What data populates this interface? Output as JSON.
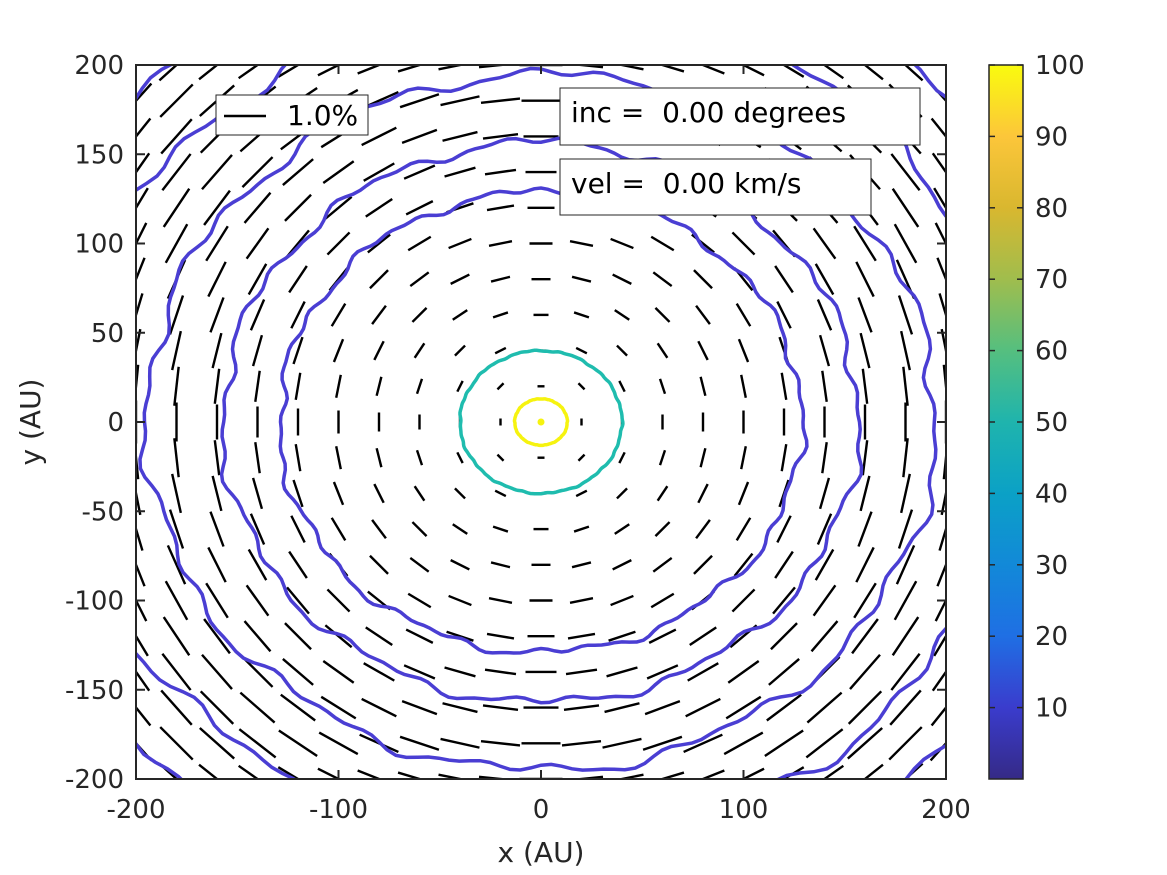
{
  "chart_data": {
    "type": "contour",
    "title": "",
    "xlabel": "x (AU)",
    "ylabel": "y (AU)",
    "xlim": [
      -200,
      200
    ],
    "ylim": [
      -200,
      200
    ],
    "xticks": [
      -200,
      -100,
      0,
      100,
      200
    ],
    "yticks": [
      -200,
      -150,
      -100,
      -50,
      0,
      50,
      100,
      150,
      200
    ],
    "xtick_labels": [
      "-200",
      "-100",
      "0",
      "100",
      "200"
    ],
    "ytick_labels": [
      "-200",
      "-150",
      "-100",
      "-50",
      "0",
      "50",
      "100",
      "150",
      "200"
    ],
    "colorbar": {
      "range": [
        0,
        100
      ],
      "ticks": [
        10,
        20,
        30,
        40,
        50,
        60,
        70,
        80,
        90,
        100
      ],
      "tick_labels": [
        "10",
        "20",
        "30",
        "40",
        "50",
        "60",
        "70",
        "80",
        "90",
        "100"
      ],
      "colormap": "parula"
    },
    "contours": [
      {
        "level": 100,
        "radius_au": 13,
        "color": "#f6f30f"
      },
      {
        "level": 50,
        "radius_au": 40,
        "color": "#1fbcae"
      },
      {
        "level": 8,
        "radius_au": 129,
        "color": "#4a3ed3"
      },
      {
        "level": 6,
        "radius_au": 157,
        "color": "#4a3ed3"
      },
      {
        "level": 4,
        "radius_au": 195,
        "color": "#4a3ed3"
      },
      {
        "level": 3,
        "radius_au": 235,
        "color": "#4a3ed3"
      },
      {
        "level": 2,
        "radius_au": 270,
        "color": "#4a3ed3"
      }
    ],
    "polarization_vectors": {
      "pattern": "azimuthal",
      "grid_spacing_au": 20,
      "scale_reference_percent": 1.0,
      "color": "#000000"
    },
    "legend": {
      "label": "1.0%",
      "location": "top-left"
    },
    "annotations": [
      "inc =  0.00 degrees",
      "vel =  0.00 km/s"
    ]
  }
}
